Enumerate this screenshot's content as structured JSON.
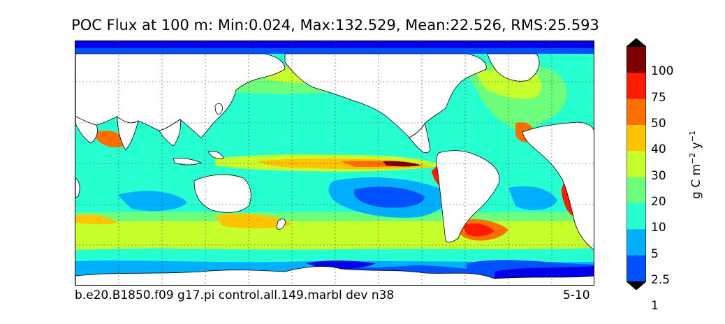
{
  "title": "POC Flux at 100 m: Min:0.024, Max:132.529, Mean:22.526, RMS:25.593",
  "footer_left": "b.e20.B1850.f09 g17.pi control.all.149.marbl dev n38",
  "footer_right": "5-10",
  "colorbar": {
    "unit_base": "g C m",
    "unit_exp1": "−2",
    "unit_mid": " y",
    "unit_exp2": "−1",
    "levels": [
      "100",
      "75",
      "50",
      "40",
      "30",
      "20",
      "10",
      "5",
      "2.5",
      "1"
    ],
    "colors": [
      "#7f0000",
      "#ff1a00",
      "#ff6f00",
      "#ffc400",
      "#c6ff2b",
      "#6dff7c",
      "#26ffd0",
      "#00b0ff",
      "#0050ff",
      "#0000ea",
      "#00007f"
    ],
    "extend": "both"
  },
  "map": {
    "projection": "cylindrical",
    "graticule": "dashed",
    "land_color": "#ffffff"
  }
}
